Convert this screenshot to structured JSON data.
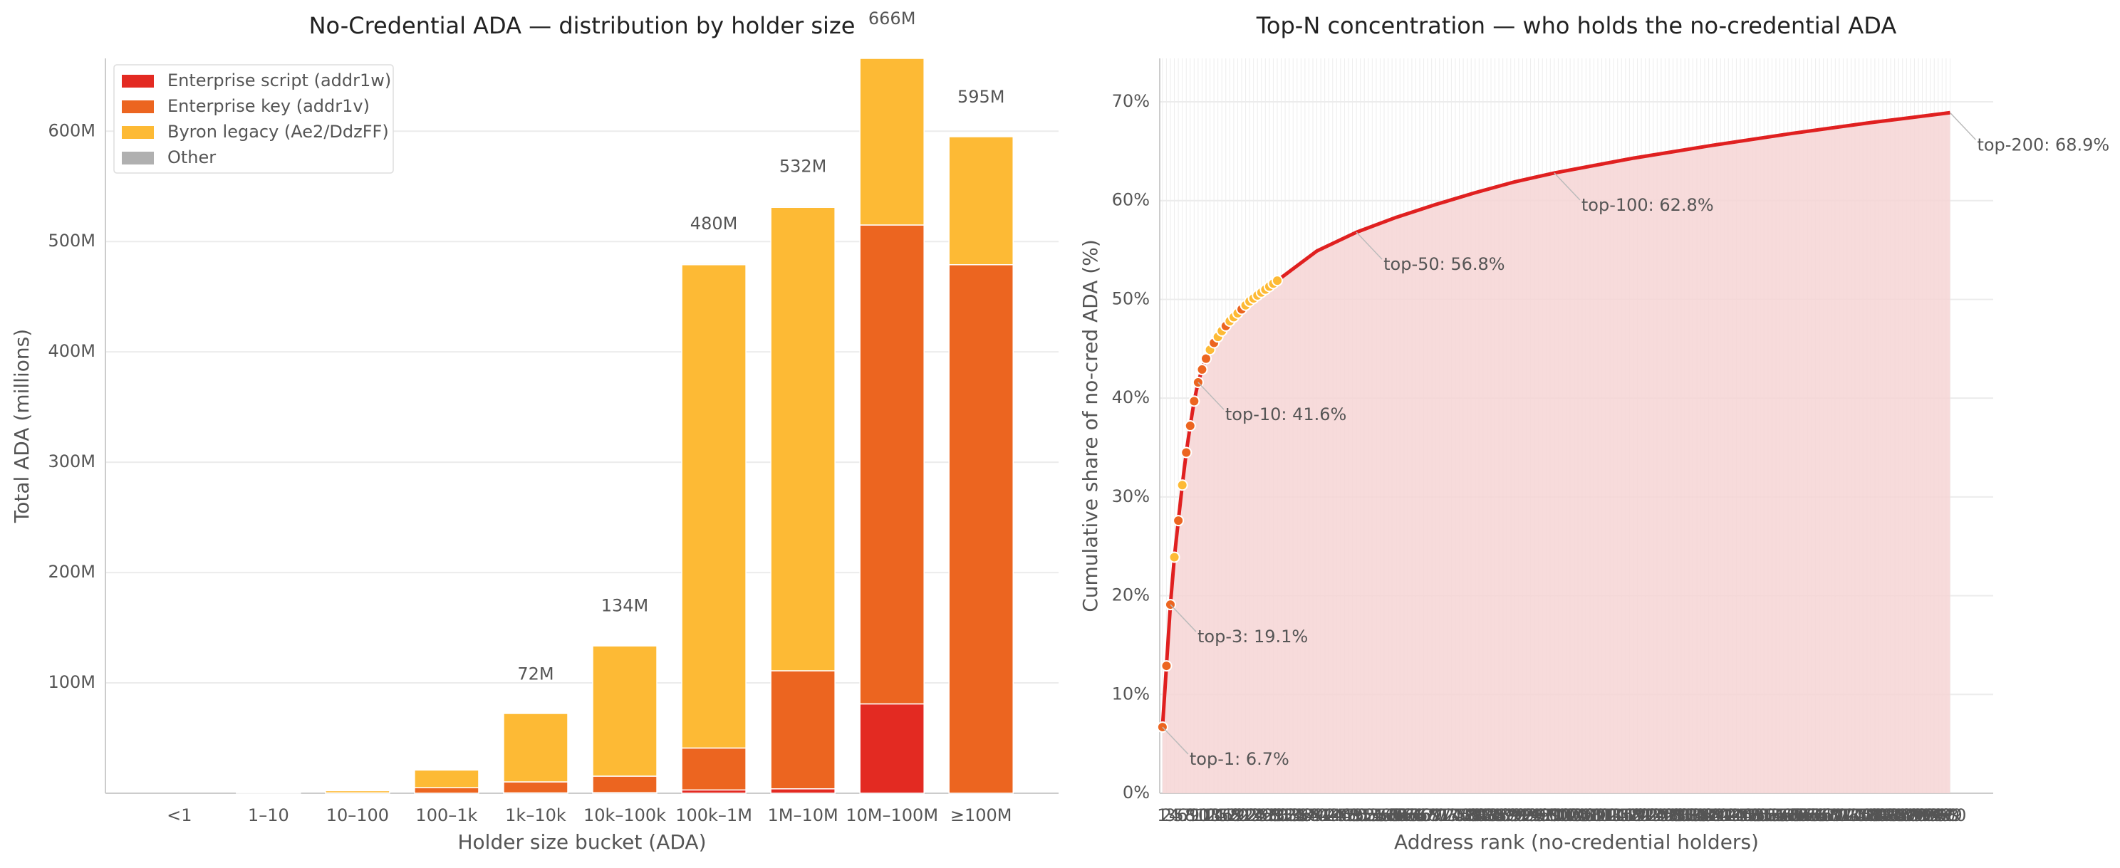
{
  "chart_data": [
    {
      "type": "bar",
      "stacked": true,
      "title": "No-Credential ADA — distribution by holder size",
      "x_label": "Holder size bucket (ADA)",
      "y_label": "Total ADA (millions)",
      "categories": [
        "<1",
        "1–10",
        "10–100",
        "100–1k",
        "1k–10k",
        "10k–100k",
        "100k–1M",
        "1M–10M",
        "10M–100M",
        "≥100M"
      ],
      "series": [
        {
          "name": "Enterprise script (addr1w)",
          "color": "#e32a22",
          "values": [
            0,
            0,
            0,
            0,
            0.3,
            0.5,
            3,
            4,
            81,
            0
          ]
        },
        {
          "name": "Enterprise key (addr1v)",
          "color": "#ec6520",
          "values": [
            0,
            0,
            0.3,
            5,
            10,
            15,
            38,
            107,
            434,
            479
          ]
        },
        {
          "name": "Byron legacy (Ae2/DdzFF)",
          "color": "#fdba35",
          "values": [
            0,
            0.1,
            2,
            16,
            62,
            118,
            438,
            420,
            151,
            116
          ]
        },
        {
          "name": "Other",
          "color": "#b0b0b0",
          "values": [
            0,
            0,
            0,
            0,
            0,
            0,
            1,
            1,
            0,
            0
          ]
        }
      ],
      "totals": {
        "values": [
          null,
          null,
          null,
          null,
          72,
          134,
          480,
          532,
          666,
          595
        ],
        "value_labels": [
          null,
          null,
          null,
          null,
          "72M",
          "134M",
          "480M",
          "532M",
          "666M",
          "595M"
        ]
      },
      "ylim": [
        0,
        666
      ],
      "yticks": [
        {
          "value": 100,
          "label": "100M"
        },
        {
          "value": 200,
          "label": "200M"
        },
        {
          "value": 300,
          "label": "300M"
        },
        {
          "value": 400,
          "label": "400M"
        },
        {
          "value": 500,
          "label": "500M"
        },
        {
          "value": 600,
          "label": "600M"
        }
      ],
      "grid": true,
      "legend": "upper left"
    },
    {
      "type": "line",
      "title": "Top-N concentration — who holds the no-credential ADA",
      "x_label": "Address rank (no-credential holders)",
      "y_label": "Cumulative share of no-cred ADA (%)",
      "x": [
        1,
        2,
        3,
        4,
        5,
        6,
        7,
        8,
        9,
        10,
        11,
        12,
        13,
        14,
        15,
        16,
        17,
        18,
        19,
        20,
        21,
        22,
        23,
        24,
        25,
        26,
        27,
        28,
        29,
        30,
        40,
        50,
        60,
        70,
        80,
        90,
        100,
        120,
        140,
        160,
        180,
        200
      ],
      "series": [
        {
          "color": "#e02020",
          "fill": "#f6d5d5",
          "values": [
            6.7,
            12.9,
            19.1,
            23.9,
            27.6,
            31.2,
            34.5,
            37.2,
            39.7,
            41.6,
            42.9,
            44.0,
            44.9,
            45.6,
            46.2,
            46.8,
            47.3,
            47.8,
            48.2,
            48.6,
            49.0,
            49.4,
            49.8,
            50.1,
            50.4,
            50.7,
            51.0,
            51.3,
            51.6,
            51.9,
            54.9,
            56.8,
            58.3,
            59.6,
            60.8,
            61.9,
            62.8,
            64.3,
            65.6,
            66.8,
            67.9,
            68.9
          ],
          "marker_colors": [
            "#ec6520",
            "#ec6520",
            "#ec6520",
            "#fdba35",
            "#ec6520",
            "#fdba35",
            "#ec6520",
            "#ec6520",
            "#ec6520",
            "#ec6520",
            "#ec6520",
            "#ec6520",
            "#fdba35",
            "#ec6520",
            "#fdba35",
            "#fdba35",
            "#ec6520",
            "#fdba35",
            "#fdba35",
            "#fdba35",
            "#ec6520",
            "#fdba35",
            "#fdba35",
            "#fdba35",
            "#fdba35",
            "#fdba35",
            "#fdba35",
            "#fdba35",
            "#fdba35",
            "#fdba35"
          ]
        }
      ],
      "annotations": [
        {
          "label": "top-1: 6.7%",
          "x": 1,
          "y": 6.7
        },
        {
          "label": "top-3: 19.1%",
          "x": 3,
          "y": 19.1
        },
        {
          "label": "top-10: 41.6%",
          "x": 10,
          "y": 41.6
        },
        {
          "label": "top-50: 56.8%",
          "x": 50,
          "y": 56.8
        },
        {
          "label": "top-100: 62.8%",
          "x": 100,
          "y": 62.8
        },
        {
          "label": "top-200: 68.9%",
          "x": 200,
          "y": 68.9
        }
      ],
      "xlim": [
        0.3,
        210.9
      ],
      "xticks": [
        1,
        2,
        3,
        4,
        5,
        6,
        7,
        8,
        9,
        10,
        11,
        12,
        13,
        14,
        15,
        16,
        17,
        18,
        19,
        20,
        21,
        22,
        23,
        24,
        25,
        26,
        27,
        28,
        29,
        30,
        31,
        32,
        33,
        34,
        35,
        36,
        37,
        38,
        39,
        40,
        41,
        42,
        43,
        44,
        45,
        46,
        47,
        48,
        49,
        50,
        51,
        52,
        53,
        54,
        55,
        56,
        57,
        58,
        59,
        60,
        61,
        62,
        63,
        64,
        65,
        66,
        67,
        68,
        69,
        70,
        71,
        72,
        73,
        74,
        75,
        76,
        77,
        78,
        79,
        80,
        81,
        82,
        83,
        84,
        85,
        86,
        87,
        88,
        89,
        90,
        91,
        92,
        93,
        94,
        95,
        96,
        97,
        98,
        99,
        100,
        101,
        102,
        103,
        104,
        105,
        106,
        107,
        108,
        109,
        110,
        111,
        112,
        113,
        114,
        115,
        116,
        117,
        118,
        119,
        120,
        121,
        122,
        123,
        124,
        125,
        126,
        127,
        128,
        129,
        130,
        131,
        132,
        133,
        134,
        135,
        136,
        137,
        138,
        139,
        140,
        141,
        142,
        143,
        144,
        145,
        146,
        147,
        148,
        149,
        150,
        151,
        152,
        153,
        154,
        155,
        156,
        157,
        158,
        159,
        160,
        161,
        162,
        163,
        164,
        165,
        166,
        167,
        168,
        169,
        170,
        171,
        172,
        173,
        174,
        175,
        176,
        177,
        178,
        179,
        180,
        181,
        182,
        183,
        184,
        185,
        186,
        187,
        188,
        189,
        190,
        191,
        192,
        193,
        194,
        195,
        196,
        197,
        198,
        199,
        200
      ],
      "ylim": [
        0,
        74.4
      ],
      "yticks": [
        {
          "value": 0,
          "label": "0%"
        },
        {
          "value": 10,
          "label": "10%"
        },
        {
          "value": 20,
          "label": "20%"
        },
        {
          "value": 30,
          "label": "30%"
        },
        {
          "value": 40,
          "label": "40%"
        },
        {
          "value": 50,
          "label": "50%"
        },
        {
          "value": 60,
          "label": "60%"
        },
        {
          "value": 70,
          "label": "70%"
        }
      ],
      "grid": true
    }
  ]
}
